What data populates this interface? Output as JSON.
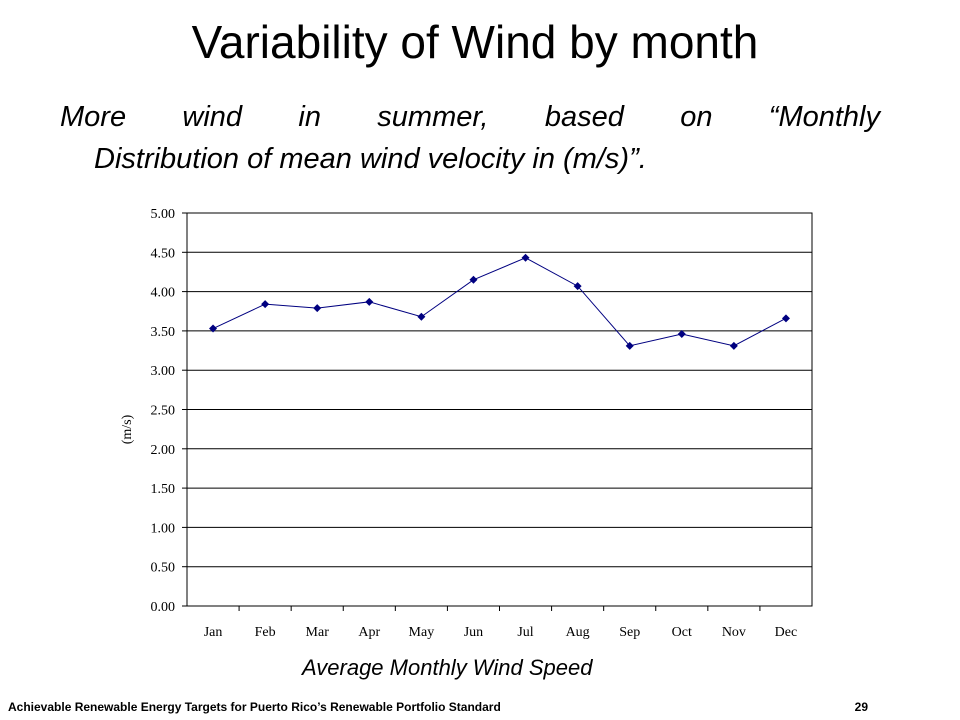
{
  "slide": {
    "title": "Variability of Wind by month",
    "subtitle_line1": "More wind in summer, based on “Monthly",
    "subtitle_line2": "Distribution of mean wind velocity in (m/s)”.",
    "caption": "Average Monthly Wind Speed",
    "footer_text": "Achievable Renewable Energy Targets for Puerto Rico’s Renewable Portfolio Standard",
    "page_number": "29"
  },
  "colors": {
    "series": "#000080",
    "gridline": "#000000",
    "plot_border": "#000000"
  },
  "chart_data": {
    "type": "line",
    "categories": [
      "Jan",
      "Feb",
      "Mar",
      "Apr",
      "May",
      "Jun",
      "Jul",
      "Aug",
      "Sep",
      "Oct",
      "Nov",
      "Dec"
    ],
    "series": [
      {
        "values": [
          3.53,
          3.84,
          3.79,
          3.87,
          3.68,
          4.15,
          4.43,
          4.07,
          3.31,
          3.46,
          3.31,
          3.66
        ]
      }
    ],
    "ylabel": "(m/s)",
    "ylim": [
      0,
      5
    ],
    "yticks": [
      "0.00",
      "0.50",
      "1.00",
      "1.50",
      "2.00",
      "2.50",
      "3.00",
      "3.50",
      "4.00",
      "4.50",
      "5.00"
    ],
    "grid": true,
    "marker": "diamond"
  }
}
